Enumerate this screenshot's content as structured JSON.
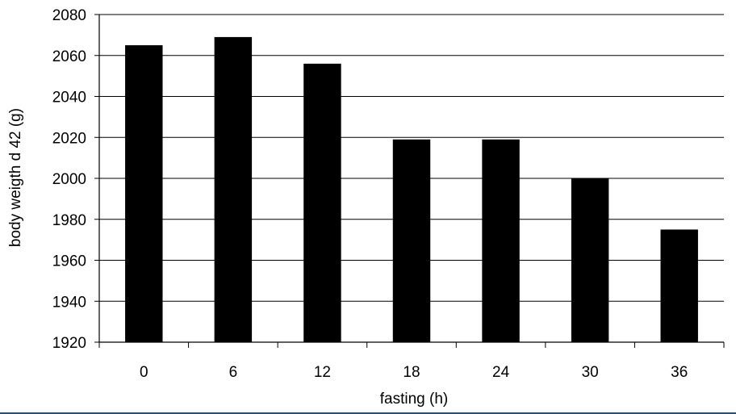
{
  "chart_data": {
    "type": "bar",
    "title": "",
    "categories": [
      "0",
      "6",
      "12",
      "18",
      "24",
      "30",
      "36"
    ],
    "values": [
      2065,
      2069,
      2056,
      2019,
      2019,
      2000,
      1975
    ],
    "xlabel": "fasting (h)",
    "ylabel": "body weigth d 42 (g)",
    "ylim": [
      1920,
      2080
    ],
    "yticks": [
      1920,
      1940,
      1960,
      1980,
      2000,
      2020,
      2040,
      2060,
      2080
    ],
    "grid": true,
    "legend": "none",
    "bar_color": "#000000",
    "grid_color": "#000000"
  }
}
